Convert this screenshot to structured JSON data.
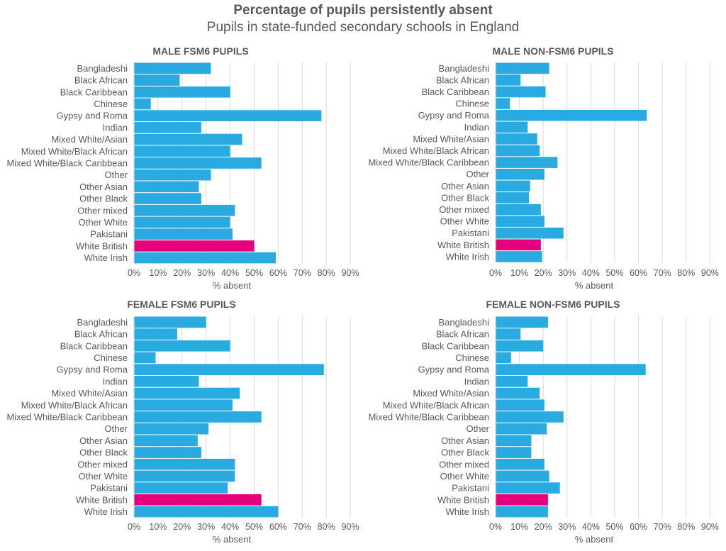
{
  "title": "Percentage of pupils persistently absent",
  "subtitle": "Pupils in state-funded secondary schools in England",
  "colors": {
    "bar": "#29abe2",
    "highlight": "#e6007e",
    "grid": "#d9d9d9",
    "text": "#595959"
  },
  "chart_data": [
    {
      "type": "bar",
      "orientation": "horizontal",
      "title": "MALE FSM6 PUPILS",
      "xlabel": "% absent",
      "xlim": [
        0,
        90
      ],
      "xticks": [
        "0%",
        "10%",
        "20%",
        "30%",
        "40%",
        "50%",
        "60%",
        "70%",
        "80%",
        "90%"
      ],
      "highlight_category": "White British",
      "categories": [
        "Bangladeshi",
        "Black African",
        "Black Caribbean",
        "Chinese",
        "Gypsy and Roma",
        "Indian",
        "Mixed White/Asian",
        "Mixed White/Black African",
        "Mixed White/Black Caribbean",
        "Other",
        "Other Asian",
        "Other Black",
        "Other mixed",
        "Other White",
        "Pakistani",
        "White British",
        "White Irish"
      ],
      "values": [
        32,
        19,
        40,
        7,
        78,
        28,
        45,
        40,
        53,
        32,
        27,
        28,
        42,
        40,
        41,
        50,
        59
      ]
    },
    {
      "type": "bar",
      "orientation": "horizontal",
      "title": "MALE NON-FSM6 PUPILS",
      "xlabel": "% absent",
      "xlim": [
        0,
        90
      ],
      "xticks": [
        "0%",
        "10%",
        "20%",
        "30%",
        "40%",
        "50%",
        "60%",
        "70%",
        "80%",
        "90%"
      ],
      "highlight_category": "White British",
      "categories": [
        "Bangladeshi",
        "Black African",
        "Black Caribbean",
        "Chinese",
        "Gypsy and Roma",
        "Indian",
        "Mixed White/Asian",
        "Mixed White/Black African",
        "Mixed White/Black Caribbean",
        "Other",
        "Other Asian",
        "Other Black",
        "Other mixed",
        "Other White",
        "Pakistani",
        "White British",
        "White Irish"
      ],
      "values": [
        22.5,
        10.5,
        21,
        6,
        63.5,
        13.5,
        17.5,
        18.5,
        26,
        20.5,
        14.5,
        14,
        19,
        20.5,
        28.5,
        19,
        19.5
      ]
    },
    {
      "type": "bar",
      "orientation": "horizontal",
      "title": "FEMALE FSM6 PUPILS",
      "xlabel": "% absent",
      "xlim": [
        0,
        90
      ],
      "xticks": [
        "0%",
        "10%",
        "20%",
        "30%",
        "40%",
        "50%",
        "60%",
        "70%",
        "80%",
        "90%"
      ],
      "highlight_category": "White British",
      "categories": [
        "Bangladeshi",
        "Black African",
        "Black Caribbean",
        "Chinese",
        "Gypsy and Roma",
        "Indian",
        "Mixed White/Asian",
        "Mixed White/Black African",
        "Mixed White/Black Caribbean",
        "Other",
        "Other Asian",
        "Other Black",
        "Other mixed",
        "Other White",
        "Pakistani",
        "White British",
        "White Irish"
      ],
      "values": [
        30,
        18,
        40,
        9,
        79,
        27,
        44,
        41,
        53,
        31,
        26.5,
        28,
        42,
        42,
        39,
        53,
        60
      ]
    },
    {
      "type": "bar",
      "orientation": "horizontal",
      "title": "FEMALE NON-FSM6 PUPILS",
      "xlabel": "% absent",
      "xlim": [
        0,
        90
      ],
      "xticks": [
        "0%",
        "10%",
        "20%",
        "30%",
        "40%",
        "50%",
        "60%",
        "70%",
        "80%",
        "90%"
      ],
      "highlight_category": "White British",
      "categories": [
        "Bangladeshi",
        "Black African",
        "Black Caribbean",
        "Chinese",
        "Gypsy and Roma",
        "Indian",
        "Mixed White/Asian",
        "Mixed White/Black African",
        "Mixed White/Black Caribbean",
        "Other",
        "Other Asian",
        "Other Black",
        "Other mixed",
        "Other White",
        "Pakistani",
        "White British",
        "White Irish"
      ],
      "values": [
        22,
        10.5,
        20,
        6.5,
        63,
        13.5,
        18.5,
        20.5,
        28.5,
        21.5,
        15,
        15,
        20.5,
        22.5,
        27,
        22,
        22
      ]
    }
  ]
}
